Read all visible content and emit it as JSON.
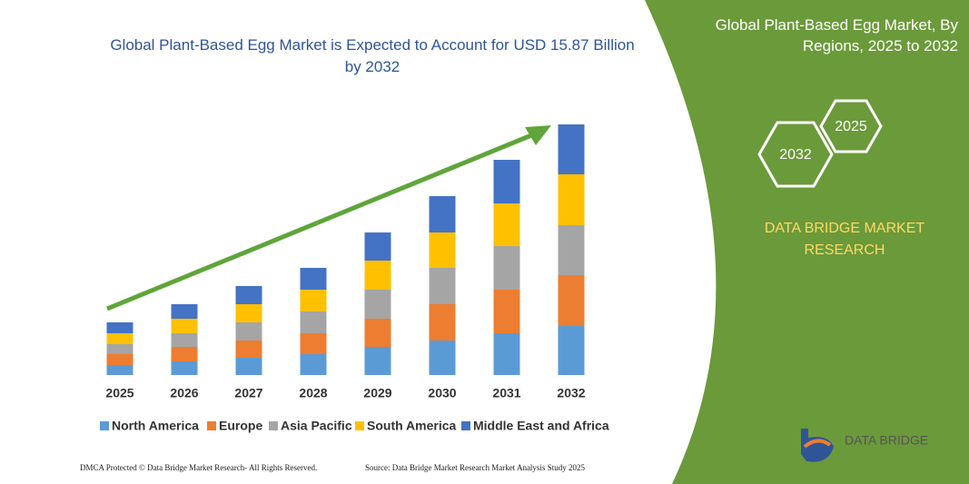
{
  "chart_data": {
    "type": "stacked-bar",
    "title": "Global Plant-Based Egg Market is Expected to Account for USD 15.87 Billion by 2032",
    "categories": [
      "2025",
      "2026",
      "2027",
      "2028",
      "2029",
      "2030",
      "2031",
      "2032"
    ],
    "series": [
      {
        "name": "North America",
        "color": "#5b9bd5",
        "values": [
          11,
          15,
          19,
          23,
          31,
          38,
          46,
          54
        ]
      },
      {
        "name": "Europe",
        "color": "#ed7d31",
        "values": [
          12,
          16,
          19,
          23,
          31,
          40,
          48,
          56
        ]
      },
      {
        "name": "Asia Pacific",
        "color": "#a5a5a5",
        "values": [
          11,
          15,
          20,
          24,
          32,
          40,
          48,
          55
        ]
      },
      {
        "name": "South America",
        "color": "#ffc000",
        "values": [
          12,
          16,
          20,
          24,
          32,
          39,
          47,
          56
        ]
      },
      {
        "name": "Middle East and Africa",
        "color": "#4472c4",
        "values": [
          12,
          16,
          20,
          24,
          31,
          40,
          48,
          55
        ]
      }
    ]
  },
  "panel": {
    "title": "Global Plant-Based Egg Market, By Regions, 2025 to 2032",
    "hex_back": "2025",
    "hex_front": "2032",
    "brand": "DATA BRIDGE MARKET RESEARCH",
    "logo": "DATA BRIDGE"
  },
  "footer": {
    "left": "DMCA Protected © Data Bridge Market Research- All Rights Reserved.",
    "right": "Source: Data Bridge Market Research Market Analysis Study 2025"
  }
}
